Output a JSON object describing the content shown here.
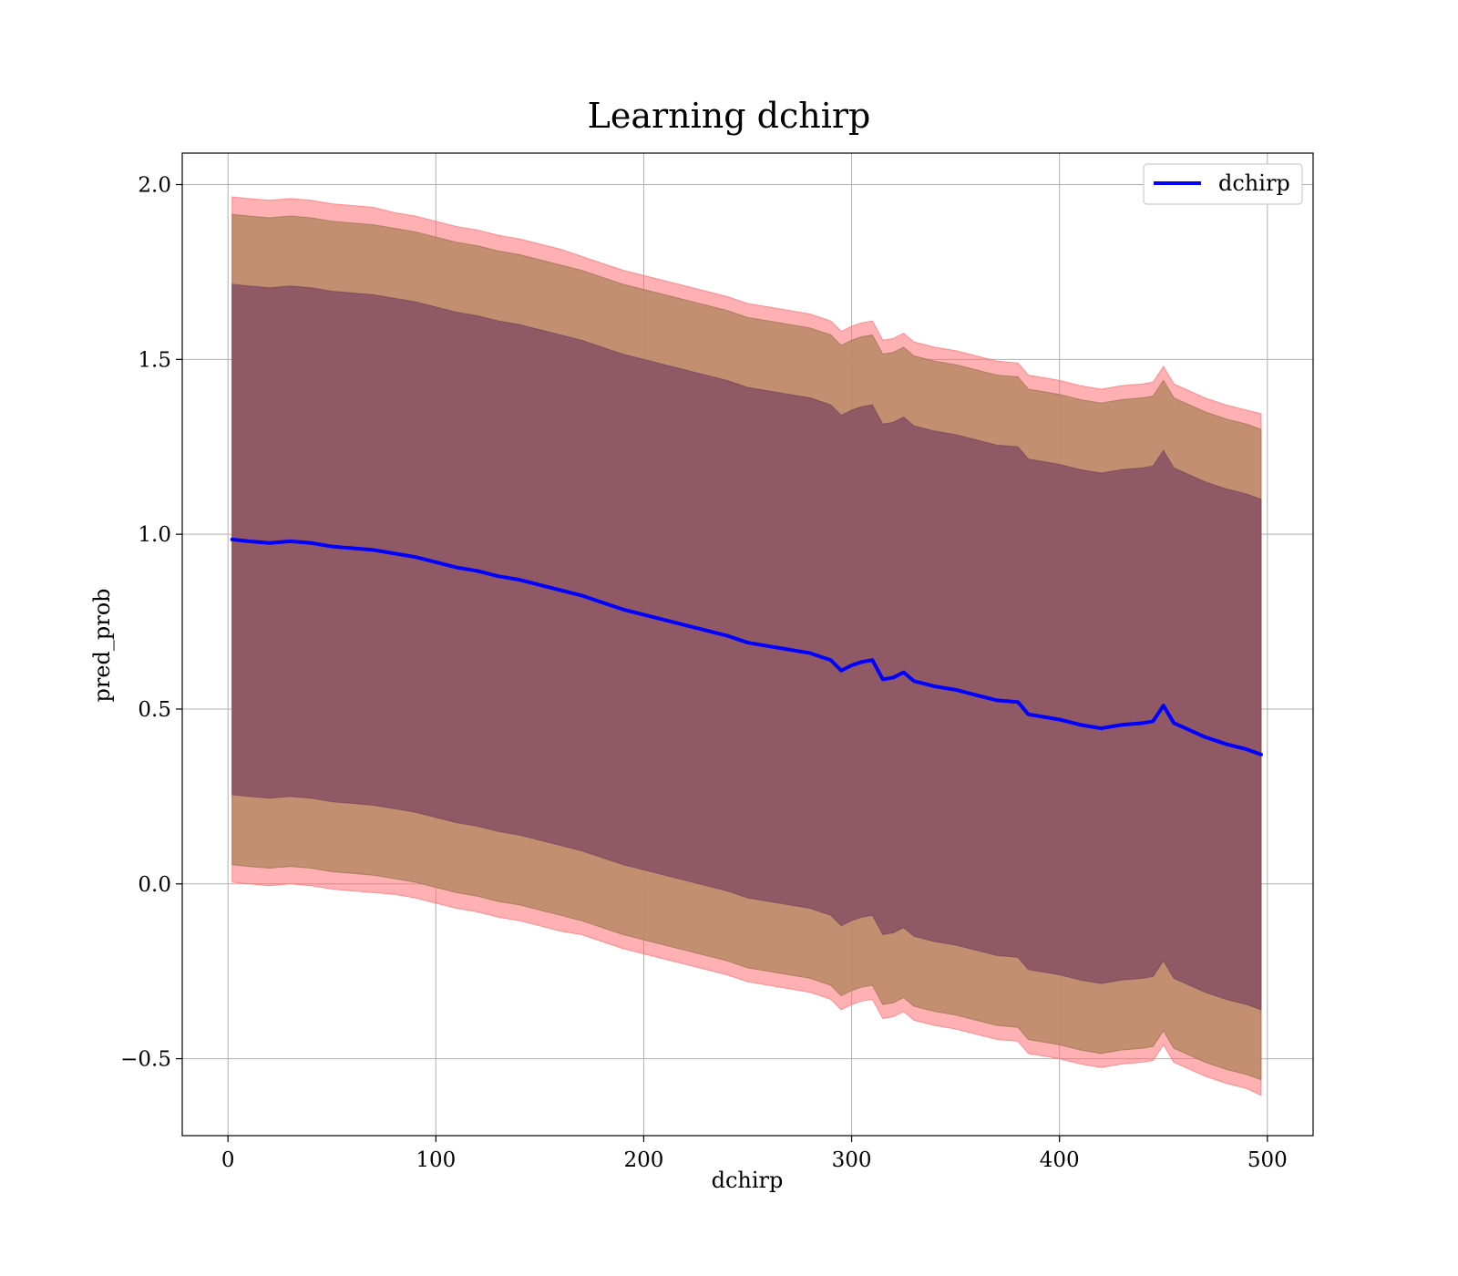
{
  "chart_data": {
    "type": "line",
    "title": "Learning dchirp",
    "xlabel": "dchirp",
    "ylabel": "pred_prob",
    "xlim": [
      -22,
      522
    ],
    "ylim": [
      -0.72,
      2.09
    ],
    "xticks": [
      0,
      100,
      200,
      300,
      400,
      500
    ],
    "xtick_labels": [
      "0",
      "100",
      "200",
      "300",
      "400",
      "500"
    ],
    "yticks": [
      -0.5,
      0.0,
      0.5,
      1.0,
      1.5,
      2.0
    ],
    "ytick_labels": [
      "−0.5",
      "0.0",
      "0.5",
      "1.0",
      "1.5",
      "2.0"
    ],
    "grid": true,
    "legend_position": "top-right",
    "series": [
      {
        "name": "dchirp",
        "color": "#0000ff",
        "x": [
          2,
          10,
          20,
          30,
          40,
          50,
          60,
          70,
          80,
          90,
          100,
          110,
          120,
          130,
          140,
          150,
          160,
          170,
          180,
          190,
          200,
          210,
          220,
          230,
          240,
          250,
          260,
          270,
          280,
          290,
          295,
          300,
          305,
          310,
          315,
          320,
          325,
          330,
          340,
          350,
          360,
          370,
          380,
          385,
          390,
          400,
          410,
          420,
          430,
          440,
          445,
          450,
          455,
          470,
          480,
          490,
          497
        ],
        "y": [
          0.985,
          0.98,
          0.975,
          0.98,
          0.975,
          0.965,
          0.96,
          0.955,
          0.945,
          0.935,
          0.92,
          0.905,
          0.895,
          0.88,
          0.87,
          0.855,
          0.84,
          0.825,
          0.805,
          0.785,
          0.77,
          0.755,
          0.74,
          0.725,
          0.71,
          0.69,
          0.68,
          0.67,
          0.66,
          0.64,
          0.61,
          0.625,
          0.635,
          0.64,
          0.585,
          0.59,
          0.605,
          0.58,
          0.565,
          0.555,
          0.54,
          0.525,
          0.52,
          0.485,
          0.48,
          0.47,
          0.455,
          0.445,
          0.455,
          0.46,
          0.465,
          0.51,
          0.46,
          0.42,
          0.4,
          0.385,
          0.37
        ],
        "outer_band_std": [
          0.98,
          0.98,
          0.98,
          0.98,
          0.98,
          0.98,
          0.98,
          0.98,
          0.975,
          0.975,
          0.975,
          0.975,
          0.975,
          0.975,
          0.975,
          0.975,
          0.975,
          0.97,
          0.97,
          0.97,
          0.97,
          0.97,
          0.97,
          0.97,
          0.97,
          0.97,
          0.97,
          0.97,
          0.97,
          0.97,
          0.97,
          0.97,
          0.97,
          0.97,
          0.97,
          0.97,
          0.97,
          0.97,
          0.97,
          0.97,
          0.97,
          0.97,
          0.97,
          0.97,
          0.97,
          0.97,
          0.97,
          0.97,
          0.97,
          0.97,
          0.97,
          0.97,
          0.97,
          0.97,
          0.97,
          0.97,
          0.975
        ],
        "middle_band_std": [
          0.93,
          0.93,
          0.93,
          0.93,
          0.93,
          0.93,
          0.93,
          0.93,
          0.93,
          0.93,
          0.93,
          0.93,
          0.93,
          0.93,
          0.93,
          0.93,
          0.93,
          0.93,
          0.93,
          0.93,
          0.93,
          0.93,
          0.93,
          0.93,
          0.93,
          0.93,
          0.93,
          0.93,
          0.93,
          0.93,
          0.93,
          0.93,
          0.93,
          0.93,
          0.93,
          0.93,
          0.93,
          0.93,
          0.93,
          0.93,
          0.93,
          0.93,
          0.93,
          0.93,
          0.93,
          0.93,
          0.93,
          0.93,
          0.93,
          0.93,
          0.93,
          0.93,
          0.93,
          0.93,
          0.93,
          0.93,
          0.93
        ],
        "inner_band_std": [
          0.73,
          0.73,
          0.73,
          0.73,
          0.73,
          0.73,
          0.73,
          0.73,
          0.73,
          0.73,
          0.73,
          0.73,
          0.73,
          0.73,
          0.73,
          0.73,
          0.73,
          0.73,
          0.73,
          0.73,
          0.73,
          0.73,
          0.73,
          0.73,
          0.73,
          0.73,
          0.73,
          0.73,
          0.73,
          0.73,
          0.73,
          0.73,
          0.73,
          0.73,
          0.73,
          0.73,
          0.73,
          0.73,
          0.73,
          0.73,
          0.73,
          0.73,
          0.73,
          0.73,
          0.73,
          0.73,
          0.73,
          0.73,
          0.73,
          0.73,
          0.73,
          0.73,
          0.73,
          0.73,
          0.73,
          0.73,
          0.73
        ]
      }
    ],
    "band_colors": {
      "outer": "#ff6f73",
      "middle": "#b88a64",
      "inner": "#875063"
    }
  }
}
